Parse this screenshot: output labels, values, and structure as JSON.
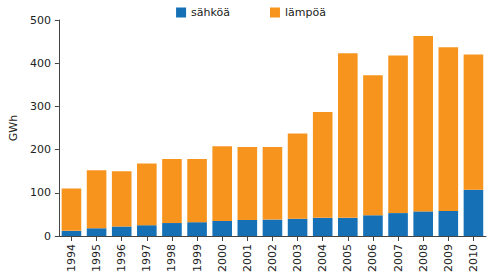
{
  "chart_data": {
    "type": "bar",
    "stacked": true,
    "grid": false,
    "legend": "top",
    "y_label": "GWh",
    "categories": [
      "1994",
      "1995",
      "1996",
      "1997",
      "1998",
      "1999",
      "2000",
      "2001",
      "2002",
      "2003",
      "2004",
      "2005",
      "2006",
      "2007",
      "2008",
      "2009",
      "2010"
    ],
    "series": [
      {
        "name": "sähköä",
        "color": "#1570b6",
        "values": [
          12,
          18,
          22,
          25,
          30,
          32,
          35,
          37,
          38,
          40,
          42,
          42,
          48,
          53,
          57,
          58,
          107
        ]
      },
      {
        "name": "lämpöä",
        "color": "#f7941d",
        "values": [
          98,
          134,
          128,
          143,
          148,
          146,
          173,
          169,
          168,
          197,
          245,
          381,
          324,
          365,
          406,
          379,
          313
        ]
      }
    ],
    "ylim": [
      0,
      500
    ],
    "yticks": [
      0,
      100,
      200,
      300,
      400,
      500
    ]
  }
}
